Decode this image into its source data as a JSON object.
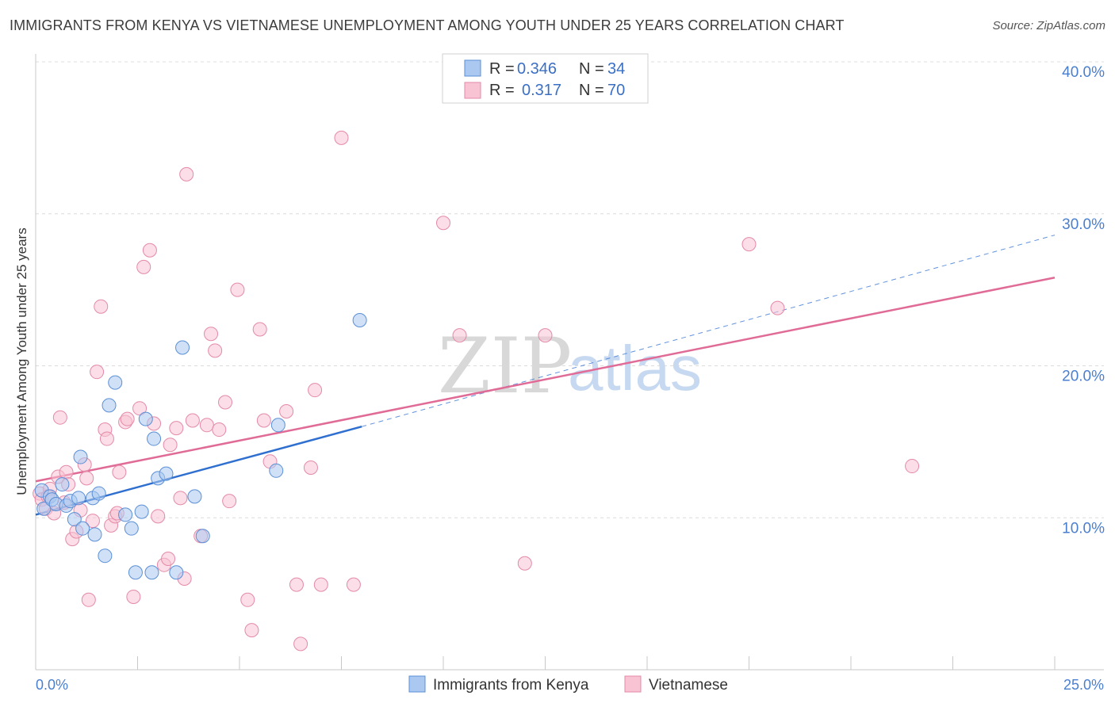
{
  "header": {
    "title": "IMMIGRANTS FROM KENYA VS VIETNAMESE UNEMPLOYMENT AMONG YOUTH UNDER 25 YEARS CORRELATION CHART",
    "source": "Source: ZipAtlas.com"
  },
  "legend": {
    "kenya": {
      "r_label": "R =",
      "r_value": "0.346",
      "n_label": "N =",
      "n_value": "34"
    },
    "vietnamese": {
      "r_label": "R =",
      "r_value": "0.317",
      "n_label": "N =",
      "n_value": "70"
    }
  },
  "watermark": {
    "zip": "ZIP",
    "atlas": "atlas"
  },
  "chart_data": {
    "type": "scatter",
    "title": "IMMIGRANTS FROM KENYA VS VIETNAMESE UNEMPLOYMENT AMONG YOUTH UNDER 25 YEARS CORRELATION CHART",
    "xlabel": "",
    "ylabel": "Unemployment Among Youth under 25 years",
    "xlim": [
      0,
      25
    ],
    "ylim": [
      0,
      40
    ],
    "x_tick_labels": [
      "0.0%",
      "25.0%"
    ],
    "y_tick_labels": [
      "10.0%",
      "20.0%",
      "30.0%",
      "40.0%"
    ],
    "y_ticks": [
      10,
      20,
      30,
      40
    ],
    "legend_position": "top-center",
    "colors": {
      "kenya_fill": "#aac8f0",
      "kenya_stroke": "#5b8fd6",
      "kenya_line": "#2f6fcf",
      "viet_fill": "#f8c3d3",
      "viet_stroke": "#e48aa8",
      "viet_line": "#e06b96"
    },
    "series": [
      {
        "name": "Immigrants from Kenya",
        "r": 0.346,
        "n": 34,
        "points": [
          [
            0.15,
            11.8
          ],
          [
            0.2,
            10.6
          ],
          [
            0.35,
            11.4
          ],
          [
            0.4,
            11.2
          ],
          [
            0.5,
            10.9
          ],
          [
            0.65,
            12.2
          ],
          [
            0.75,
            10.8
          ],
          [
            0.85,
            11.1
          ],
          [
            0.95,
            9.9
          ],
          [
            1.05,
            11.3
          ],
          [
            1.1,
            14.0
          ],
          [
            1.15,
            9.3
          ],
          [
            1.4,
            11.3
          ],
          [
            1.45,
            8.9
          ],
          [
            1.55,
            11.6
          ],
          [
            1.7,
            7.5
          ],
          [
            1.8,
            17.4
          ],
          [
            1.95,
            18.9
          ],
          [
            2.2,
            10.2
          ],
          [
            2.35,
            9.3
          ],
          [
            2.45,
            6.4
          ],
          [
            2.6,
            10.4
          ],
          [
            2.7,
            16.5
          ],
          [
            2.85,
            6.4
          ],
          [
            2.9,
            15.2
          ],
          [
            3.0,
            12.6
          ],
          [
            3.2,
            12.9
          ],
          [
            3.45,
            6.4
          ],
          [
            3.6,
            21.2
          ],
          [
            3.9,
            11.4
          ],
          [
            4.1,
            8.8
          ],
          [
            5.9,
            13.1
          ],
          [
            5.95,
            16.1
          ],
          [
            7.95,
            23.0
          ]
        ],
        "trend": {
          "x": [
            0,
            8.0
          ],
          "y": [
            10.2,
            16.0
          ],
          "extended": {
            "x": [
              8.0,
              25
            ],
            "y": [
              16.0,
              28.6
            ]
          }
        }
      },
      {
        "name": "Vietnamese",
        "r": 0.317,
        "n": 70,
        "points": [
          [
            0.1,
            11.6
          ],
          [
            0.15,
            11.2
          ],
          [
            0.25,
            10.6
          ],
          [
            0.35,
            11.9
          ],
          [
            0.45,
            10.3
          ],
          [
            0.55,
            12.7
          ],
          [
            0.6,
            16.6
          ],
          [
            0.75,
            13.0
          ],
          [
            0.8,
            12.2
          ],
          [
            0.9,
            8.6
          ],
          [
            1.0,
            9.1
          ],
          [
            1.1,
            10.5
          ],
          [
            1.2,
            13.5
          ],
          [
            1.3,
            4.6
          ],
          [
            1.4,
            9.8
          ],
          [
            1.5,
            19.6
          ],
          [
            1.6,
            23.9
          ],
          [
            1.7,
            15.8
          ],
          [
            1.75,
            15.2
          ],
          [
            1.85,
            9.5
          ],
          [
            1.95,
            10.1
          ],
          [
            2.05,
            13.0
          ],
          [
            2.2,
            16.3
          ],
          [
            2.4,
            4.8
          ],
          [
            2.55,
            17.2
          ],
          [
            2.65,
            26.5
          ],
          [
            2.8,
            27.6
          ],
          [
            2.9,
            16.2
          ],
          [
            3.0,
            10.1
          ],
          [
            3.15,
            6.9
          ],
          [
            3.3,
            14.8
          ],
          [
            3.45,
            15.9
          ],
          [
            3.55,
            11.3
          ],
          [
            3.65,
            6.0
          ],
          [
            3.7,
            32.6
          ],
          [
            3.85,
            16.4
          ],
          [
            4.05,
            8.8
          ],
          [
            4.2,
            16.1
          ],
          [
            4.3,
            22.1
          ],
          [
            4.4,
            21.0
          ],
          [
            4.5,
            15.8
          ],
          [
            4.65,
            17.6
          ],
          [
            4.75,
            11.1
          ],
          [
            4.95,
            25.0
          ],
          [
            5.2,
            4.6
          ],
          [
            5.3,
            2.6
          ],
          [
            5.5,
            22.4
          ],
          [
            5.6,
            16.4
          ],
          [
            5.75,
            13.7
          ],
          [
            6.15,
            17.0
          ],
          [
            6.4,
            5.6
          ],
          [
            6.5,
            1.7
          ],
          [
            6.75,
            13.3
          ],
          [
            6.85,
            18.4
          ],
          [
            7.0,
            5.6
          ],
          [
            7.5,
            35.0
          ],
          [
            7.8,
            5.6
          ],
          [
            10.0,
            29.4
          ],
          [
            10.4,
            22.0
          ],
          [
            12.0,
            7.0
          ],
          [
            12.5,
            22.0
          ],
          [
            17.5,
            28.0
          ],
          [
            18.2,
            23.8
          ],
          [
            21.5,
            13.4
          ],
          [
            2.25,
            16.5
          ],
          [
            3.25,
            7.3
          ],
          [
            1.25,
            12.6
          ],
          [
            0.7,
            11.0
          ],
          [
            0.3,
            11.4
          ],
          [
            2.0,
            10.3
          ]
        ],
        "trend": {
          "x": [
            0,
            25
          ],
          "y": [
            12.4,
            25.8
          ]
        }
      }
    ]
  },
  "bottom_legend": {
    "kenya_label": "Immigrants from Kenya",
    "viet_label": "Vietnamese"
  }
}
